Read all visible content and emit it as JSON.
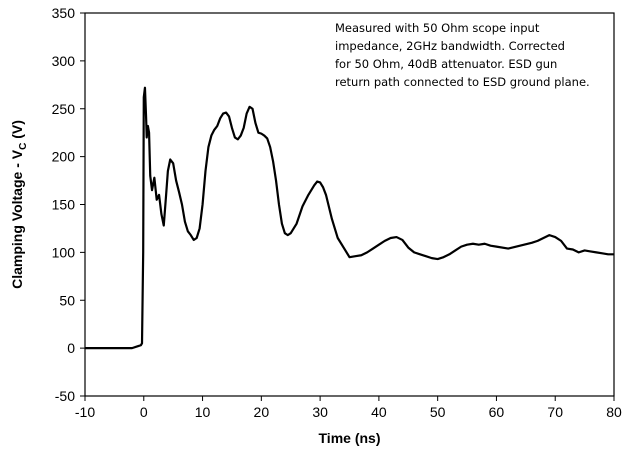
{
  "chart_data": {
    "type": "line",
    "xlabel": "Time (ns)",
    "ylabel": "Clamping Voltage - V",
    "ylabel_sub": "C",
    "ylabel_unit": " (V)",
    "xlim": [
      -10,
      80
    ],
    "ylim": [
      -50,
      350
    ],
    "xticks": [
      -10,
      0,
      10,
      20,
      30,
      40,
      50,
      60,
      70,
      80
    ],
    "yticks": [
      -50,
      0,
      50,
      100,
      150,
      200,
      250,
      300,
      350
    ],
    "grid": false,
    "annotation": [
      "Measured with 50 Ohm scope input",
      "impedance, 2GHz bandwidth. Corrected",
      "for 50 Ohm, 40dB attenuator. ESD gun",
      "return path connected to ESD ground plane."
    ],
    "line_color": "#000000",
    "series": [
      {
        "x": [
          -10,
          -8,
          -6,
          -4,
          -2,
          -1,
          -0.5,
          -0.3,
          -0.1,
          0,
          0.2,
          0.4,
          0.5,
          0.7,
          0.9,
          1.1,
          1.4,
          1.8,
          2.2,
          2.6,
          3.0,
          3.4,
          3.8,
          4.1,
          4.5,
          5.0,
          5.5,
          6.0,
          6.5,
          7.0,
          7.5,
          8.0,
          8.5,
          9.0,
          9.5,
          10.0,
          10.5,
          11.0,
          11.5,
          12.0,
          12.5,
          13.0,
          13.5,
          14.0,
          14.5,
          15.0,
          15.5,
          16.0,
          16.5,
          17.0,
          17.5,
          18.0,
          18.5,
          19.0,
          19.5,
          20.0,
          20.5,
          21.0,
          21.5,
          22.0,
          22.5,
          23.0,
          23.5,
          24.0,
          24.5,
          25.0,
          26.0,
          27.0,
          28.0,
          29.0,
          29.5,
          30.0,
          30.5,
          31.0,
          32.0,
          33.0,
          34.0,
          35.0,
          36.0,
          37.0,
          38.0,
          39.0,
          40.0,
          41.0,
          42.0,
          43.0,
          44.0,
          45.0,
          46.0,
          47.0,
          48.0,
          49.0,
          50.0,
          51.0,
          52.0,
          53.0,
          54.0,
          55.0,
          56.0,
          57.0,
          58.0,
          59.0,
          60.0,
          62.0,
          64.0,
          66.0,
          67.0,
          68.0,
          69.0,
          70.0,
          71.0,
          72.0,
          73.0,
          74.0,
          75.0,
          76.0,
          77.0,
          78.0,
          79.0,
          80.0
        ],
        "y": [
          0,
          0,
          0,
          0,
          0,
          2,
          3,
          5,
          100,
          262,
          272,
          240,
          220,
          232,
          225,
          180,
          165,
          178,
          155,
          160,
          140,
          128,
          160,
          185,
          197,
          193,
          175,
          163,
          150,
          132,
          122,
          118,
          113,
          115,
          125,
          150,
          185,
          210,
          222,
          228,
          232,
          240,
          245,
          246,
          242,
          230,
          220,
          218,
          222,
          230,
          245,
          252,
          250,
          235,
          225,
          224,
          222,
          219,
          210,
          195,
          175,
          150,
          130,
          120,
          118,
          120,
          130,
          148,
          160,
          170,
          174,
          173,
          168,
          160,
          135,
          115,
          105,
          95,
          96,
          97,
          100,
          104,
          108,
          112,
          115,
          116,
          113,
          105,
          100,
          98,
          96,
          94,
          93,
          95,
          98,
          102,
          106,
          108,
          109,
          108,
          109,
          107,
          106,
          104,
          107,
          110,
          112,
          115,
          118,
          116,
          112,
          104,
          103,
          100,
          102,
          101,
          100,
          99,
          98,
          98
        ]
      }
    ]
  }
}
